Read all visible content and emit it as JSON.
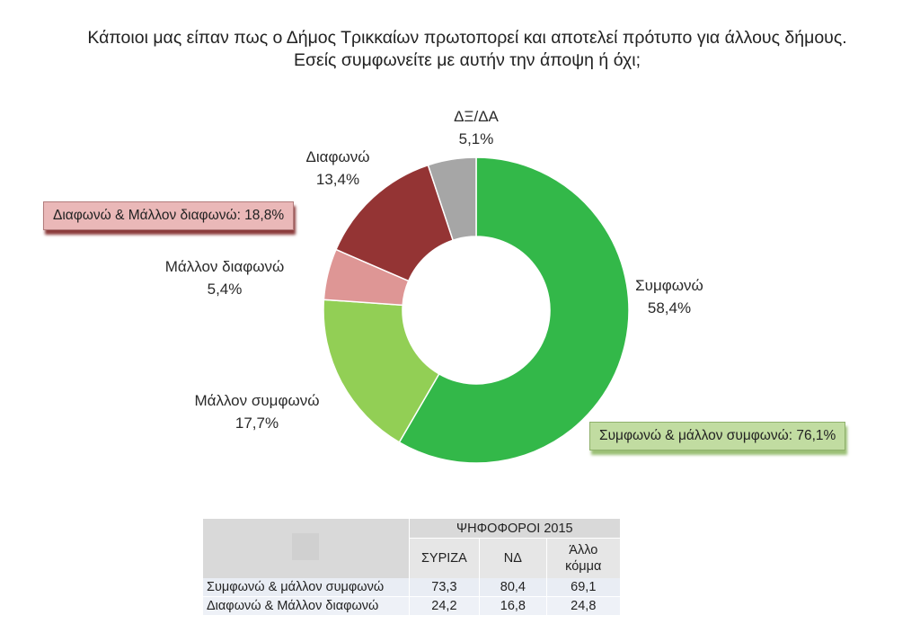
{
  "title": {
    "line1": "Κάποιοι μας είπαν πως ο Δήμος Τρικκαίων πρωτοπορεί και αποτελεί πρότυπο για άλλους δήμους.",
    "line2": "Εσείς συμφωνείτε με αυτήν την άποψη ή όχι;"
  },
  "chart_data": {
    "type": "pie",
    "hole": "donut",
    "slices": [
      {
        "label": "Συμφωνώ",
        "value": 58.4,
        "value_label": "58,4%",
        "color": "#33b849"
      },
      {
        "label": "Μάλλον συμφωνώ",
        "value": 17.7,
        "value_label": "17,7%",
        "color": "#92cf55"
      },
      {
        "label": "Μάλλον διαφωνώ",
        "value": 5.4,
        "value_label": "5,4%",
        "color": "#de9695"
      },
      {
        "label": "Διαφωνώ",
        "value": 13.4,
        "value_label": "13,4%",
        "color": "#943434"
      },
      {
        "label": "ΔΞ/ΔΑ",
        "value": 5.1,
        "value_label": "5,1%",
        "color": "#a6a6a6"
      }
    ],
    "callouts": {
      "negative": "Διαφωνώ & Μάλλον διαφωνώ: 18,8%",
      "positive": "Συμφωνώ & μάλλον συμφωνώ: 76,1%"
    }
  },
  "table": {
    "group_header": "ΨΗΦΟΦΟΡΟΙ 2015",
    "columns": [
      {
        "line1": "ΣΥΡΙΖΑ",
        "line2": ""
      },
      {
        "line1": "ΝΔ",
        "line2": ""
      },
      {
        "line1": "Άλλο",
        "line2": "κόμμα"
      }
    ],
    "rows": [
      {
        "label": "Συμφωνώ & μάλλον συμφωνώ",
        "values": [
          "73,3",
          "80,4",
          "69,1"
        ]
      },
      {
        "label": "Διαφωνώ & Μάλλον διαφωνώ",
        "values": [
          "24,2",
          "16,8",
          "24,8"
        ]
      }
    ]
  }
}
